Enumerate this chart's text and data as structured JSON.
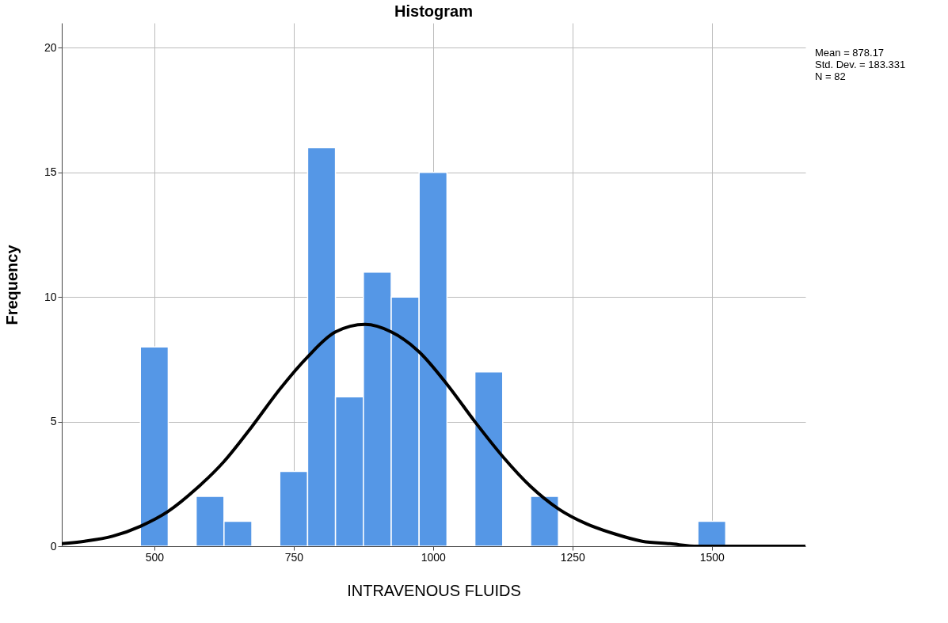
{
  "chart_data": {
    "type": "histogram",
    "title": "Histogram",
    "xlabel": "INTRAVENOUS FLUIDS",
    "ylabel": "Frequency",
    "bins": [
      475,
      525,
      575,
      625,
      675,
      725,
      775,
      825,
      875,
      925,
      975,
      1025,
      1075,
      1125,
      1175,
      1225,
      1275,
      1325,
      1375,
      1425,
      1475,
      1525
    ],
    "values": [
      8,
      0,
      2,
      1,
      0,
      3,
      16,
      6,
      11,
      10,
      15,
      0,
      7,
      0,
      2,
      0,
      0,
      0,
      0,
      0,
      1
    ],
    "color": "#5597e6",
    "series": [
      {
        "type": "line",
        "color": "#000000",
        "x": [
          334,
          375,
          425,
          475,
          525,
          575,
          625,
          675,
          725,
          775,
          825,
          878,
          925,
          975,
          1025,
          1075,
          1125,
          1175,
          1225,
          1275,
          1325,
          1375,
          1425,
          1475,
          1525,
          1575,
          1668
        ],
        "values": [
          0.1,
          0.2,
          0.4,
          0.8,
          1.4,
          2.3,
          3.4,
          4.8,
          6.3,
          7.6,
          8.6,
          8.9,
          8.6,
          7.8,
          6.5,
          5.0,
          3.6,
          2.4,
          1.5,
          0.9,
          0.5,
          0.2,
          0.1,
          0.0,
          0.0,
          0.0,
          0.0
        ]
      }
    ],
    "xlim": [
      334,
      1668
    ],
    "xticks": [
      500,
      750,
      1000,
      1250,
      1500
    ],
    "ylim": [
      0,
      21
    ],
    "yticks": [
      0,
      5,
      10,
      15,
      20
    ],
    "grid": true,
    "annotations": [
      "Mean = 878.17",
      "Std. Dev. = 183.331",
      "N = 82"
    ]
  }
}
